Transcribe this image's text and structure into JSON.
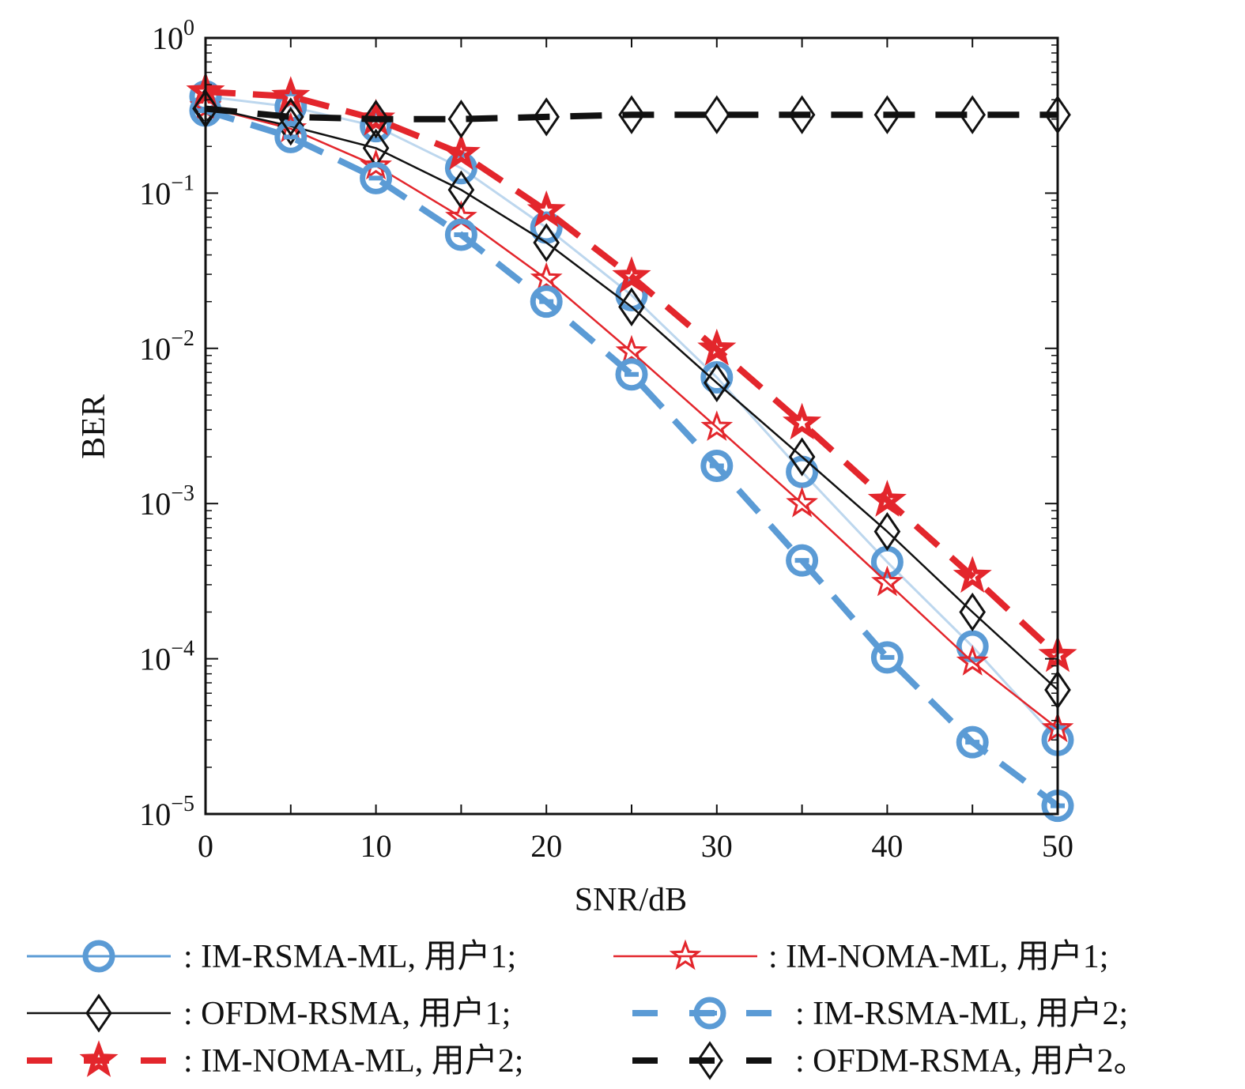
{
  "chart_data": {
    "type": "line",
    "title": "",
    "xlabel": "SNR/dB",
    "ylabel": "BER",
    "xlim": [
      0,
      50
    ],
    "ylim": [
      1e-05,
      1
    ],
    "yscale": "log",
    "x": [
      0,
      5,
      10,
      15,
      20,
      25,
      30,
      35,
      40,
      45,
      50
    ],
    "x_ticks": [
      "0",
      "10",
      "20",
      "30",
      "40",
      "50"
    ],
    "y_ticks": [
      {
        "base": "10",
        "exp": "0"
      },
      {
        "base": "10",
        "exp": "−1"
      },
      {
        "base": "10",
        "exp": "−2"
      },
      {
        "base": "10",
        "exp": "−3"
      },
      {
        "base": "10",
        "exp": "−4"
      },
      {
        "base": "10",
        "exp": "−5"
      }
    ],
    "legend_position": "bottom",
    "series": [
      {
        "name": ": IM-RSMA-ML, 用户1;",
        "color": "#5b9bd5",
        "line_color": "#bdd7ee",
        "dash": "solid",
        "marker": "circle",
        "values": [
          0.42,
          0.36,
          0.27,
          0.145,
          0.06,
          0.022,
          0.0065,
          0.0016,
          0.00042,
          0.00012,
          3e-05
        ]
      },
      {
        "name": ": IM-NOMA-ML, 用户1;",
        "color": "#e3262c",
        "line_color": "#e3262c",
        "dash": "solid",
        "marker": "star",
        "values": [
          0.36,
          0.26,
          0.15,
          0.07,
          0.028,
          0.0095,
          0.0031,
          0.001,
          0.00031,
          9.55e-05,
          3.55e-05
        ]
      },
      {
        "name": ": OFDM-RSMA, 用户1;",
        "color": "#111111",
        "line_color": "#111111",
        "dash": "solid",
        "marker": "diamond",
        "values": [
          0.36,
          0.27,
          0.195,
          0.105,
          0.048,
          0.0185,
          0.006,
          0.002,
          0.00066,
          0.0002,
          6.3e-05
        ]
      },
      {
        "name": ": IM-RSMA-ML, 用户2;",
        "color": "#5b9bd5",
        "line_color": "#5b9bd5",
        "dash": "dashed",
        "marker": "circle-bar",
        "values": [
          0.34,
          0.23,
          0.125,
          0.054,
          0.02,
          0.0068,
          0.00175,
          0.00043,
          0.000102,
          2.9e-05,
          1.13e-05
        ]
      },
      {
        "name": ": IM-NOMA-ML, 用户2;",
        "color": "#e3262c",
        "line_color": "#e3262c",
        "dash": "dashed",
        "marker": "star-filled",
        "values": [
          0.45,
          0.42,
          0.3,
          0.18,
          0.077,
          0.029,
          0.0099,
          0.0033,
          0.00105,
          0.00034,
          0.000105
        ]
      },
      {
        "name": ": OFDM-RSMA, 用户2。",
        "color": "#111111",
        "line_color": "#111111",
        "dash": "dashed",
        "marker": "diamond",
        "values": [
          0.35,
          0.31,
          0.3,
          0.3,
          0.31,
          0.32,
          0.32,
          0.32,
          0.32,
          0.32,
          0.32
        ]
      }
    ]
  }
}
